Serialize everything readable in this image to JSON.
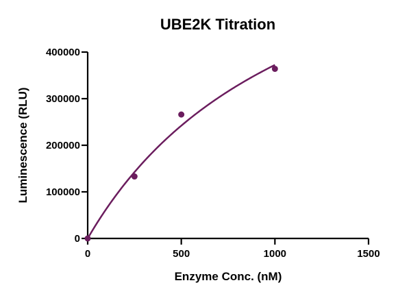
{
  "chart_data": {
    "type": "scatter",
    "title": "UBE2K Titration",
    "xlabel": "Enzyme Conc. (nM)",
    "ylabel": "Luminescence (RLU)",
    "xlim": [
      0,
      1500
    ],
    "ylim": [
      0,
      400000
    ],
    "x_ticks": [
      0,
      500,
      1000,
      1500
    ],
    "y_ticks": [
      0,
      100000,
      200000,
      300000,
      400000
    ],
    "x_tick_labels": [
      "0",
      "500",
      "1000",
      "1500"
    ],
    "y_tick_labels": [
      "0",
      "100000",
      "200000",
      "300000",
      "400000"
    ],
    "grid": false,
    "series": [
      {
        "x": [
          0,
          250,
          500,
          1000
        ],
        "y": [
          0,
          133000,
          266000,
          364000
        ],
        "color": "#6b1d5e",
        "fit_curve": "saturating"
      }
    ]
  }
}
